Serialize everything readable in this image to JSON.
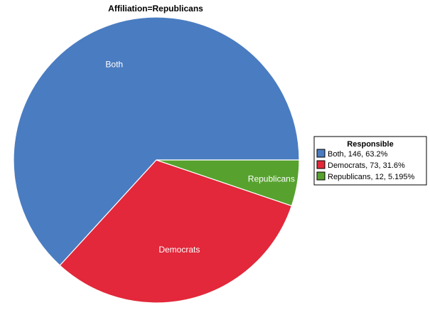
{
  "chart_data": {
    "type": "pie",
    "title": "Affiliation=Republicans",
    "legend_title": "Responsible",
    "legend_position": "right",
    "slices": [
      {
        "label": "Both",
        "value": 146,
        "percent": "63.2%",
        "legend": "Both, 146, 63.2%",
        "color": "#4a7cc1"
      },
      {
        "label": "Democrats",
        "value": 73,
        "percent": "31.6%",
        "legend": "Democrats, 73, 31.6%",
        "color": "#e2283a"
      },
      {
        "label": "Republicans",
        "value": 12,
        "percent": "5.195%",
        "legend": "Republicans, 12, 5.195%",
        "color": "#57a22e"
      }
    ]
  }
}
